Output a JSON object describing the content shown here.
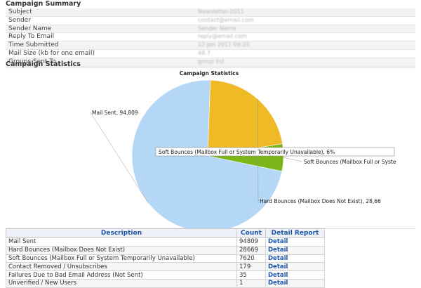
{
  "campaign_summary": {
    "title": "Campaign Summary",
    "rows": [
      {
        "label": "Subject",
        "value": "Newsletter-2011"
      },
      {
        "label": "Sender",
        "value": "contact@email.com"
      },
      {
        "label": "Sender Name",
        "value": "Sender Name"
      },
      {
        "label": "Reply To Email",
        "value": "reply@email.com"
      },
      {
        "label": "Time Submitted",
        "value": "12 Jan 2011 09:25"
      },
      {
        "label": "Mail Size (kb for one email)",
        "value": "48.7"
      },
      {
        "label": "Groups Sent To",
        "value": "group list"
      }
    ]
  },
  "campaign_statistics": {
    "title": "Campaign Statistics"
  },
  "chart_data": {
    "type": "pie",
    "title": "Campaign Statistics",
    "slices": [
      {
        "name": "Mail Sent",
        "value": 94809,
        "color": "#b3d7f5",
        "label": "Mail Sent, 94,809"
      },
      {
        "name": "Soft Bounces (Mailbox Full or System Temporarily Unavailable)",
        "value": 7620,
        "color": "#7cb518",
        "label": "Soft Bounces (Mailbox Full or Syste"
      },
      {
        "name": "Hard Bounces (Mailbox Does Not Exist)",
        "value": 28669,
        "color": "#f0b926",
        "label": "Hard Bounces (Mailbox Does Not Exist), 28,66"
      }
    ],
    "tooltip": "Soft Bounces (Mailbox Full or System Temporarily Unavailable), 6%"
  },
  "stats_table": {
    "headers": [
      "Description",
      "Count",
      "Detail Report"
    ],
    "rows": [
      {
        "description": "Mail Sent",
        "count": "94809",
        "detail": "Detail"
      },
      {
        "description": "Hard Bounces (Mailbox Does Not Exist)",
        "count": "28669",
        "detail": "Detail"
      },
      {
        "description": "Soft Bounces (Mailbox Full or System Temporarily Unavailable)",
        "count": "7620",
        "detail": "Detail"
      },
      {
        "description": "Contact Removed / Unsubscribes",
        "count": "179",
        "detail": "Detail"
      },
      {
        "description": "Failures Due to Bad Email Address (Not Sent)",
        "count": "35",
        "detail": "Detail"
      },
      {
        "description": "Unverified / New Users",
        "count": "1",
        "detail": "Detail"
      }
    ]
  }
}
